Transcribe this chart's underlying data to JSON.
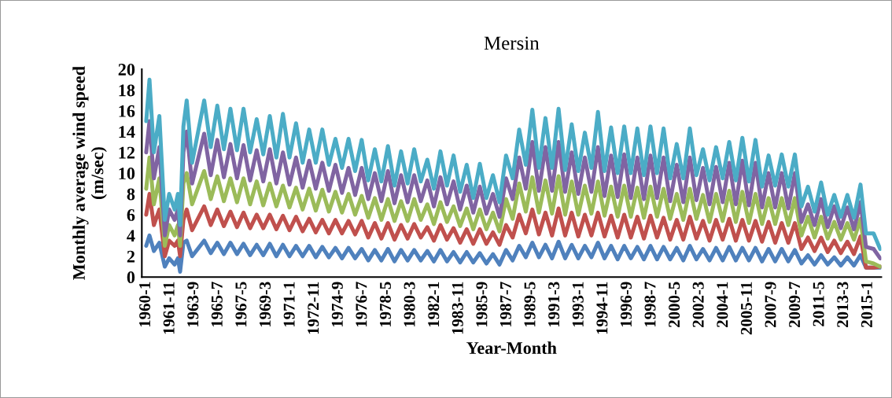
{
  "chart_data": {
    "type": "line",
    "title": "Mersin",
    "xlabel": "Year-Month",
    "ylabel": "Monthly average wind speed\n(m/sec)",
    "x": [
      "1960-01",
      "1960-04",
      "1960-08",
      "1961-01",
      "1961-06",
      "1961-10",
      "1962-03",
      "1962-06",
      "1962-08",
      "1962-11",
      "1963-02",
      "1963-07",
      "1964-06",
      "1964-12",
      "1965-06",
      "1965-12",
      "1966-06",
      "1966-12",
      "1967-06",
      "1967-12",
      "1968-06",
      "1968-12",
      "1969-06",
      "1969-12",
      "1970-06",
      "1970-12",
      "1971-06",
      "1971-12",
      "1972-06",
      "1972-12",
      "1973-06",
      "1973-12",
      "1974-06",
      "1974-12",
      "1975-06",
      "1975-12",
      "1976-06",
      "1976-12",
      "1977-06",
      "1977-12",
      "1978-06",
      "1978-12",
      "1979-06",
      "1979-12",
      "1980-06",
      "1980-12",
      "1981-06",
      "1981-12",
      "1982-06",
      "1982-12",
      "1983-06",
      "1983-12",
      "1984-06",
      "1984-12",
      "1985-06",
      "1985-12",
      "1986-06",
      "1986-12",
      "1987-06",
      "1987-12",
      "1988-06",
      "1988-12",
      "1989-06",
      "1989-12",
      "1990-06",
      "1990-12",
      "1991-06",
      "1991-12",
      "1992-06",
      "1992-12",
      "1993-06",
      "1993-12",
      "1994-06",
      "1994-12",
      "1995-06",
      "1995-12",
      "1996-06",
      "1996-12",
      "1997-06",
      "1997-12",
      "1998-06",
      "1998-12",
      "1999-06",
      "1999-12",
      "2000-06",
      "2000-12",
      "2001-06",
      "2001-12",
      "2002-06",
      "2002-12",
      "2003-06",
      "2003-12",
      "2004-06",
      "2004-12",
      "2005-06",
      "2005-12",
      "2006-06",
      "2006-12",
      "2007-06",
      "2007-12",
      "2008-06",
      "2008-12",
      "2009-06",
      "2009-12",
      "2010-06",
      "2010-12",
      "2011-06",
      "2011-12",
      "2012-06",
      "2012-12",
      "2013-06",
      "2013-12",
      "2014-06",
      "2014-11",
      "2015-06",
      "2015-12"
    ],
    "series": [
      {
        "color": "#4f81bd",
        "values": [
          3,
          4,
          2.5,
          3.3,
          1,
          1.8,
          1.2,
          1.8,
          0.5,
          3.3,
          3.5,
          2,
          3.5,
          2.3,
          3.3,
          2.2,
          3.3,
          2.2,
          3.2,
          2.1,
          3.1,
          2.1,
          3.2,
          2,
          3.1,
          2,
          3,
          2,
          3,
          1.9,
          2.9,
          1.9,
          2.8,
          1.8,
          2.8,
          1.8,
          2.7,
          1.6,
          2.6,
          1.6,
          2.7,
          1.5,
          2.6,
          1.6,
          2.6,
          1.6,
          2.5,
          1.5,
          2.6,
          1.5,
          2.4,
          1.4,
          2.4,
          1.4,
          2.3,
          1.3,
          2.2,
          1.2,
          2.6,
          1.6,
          3,
          1.9,
          3.3,
          1.9,
          3.1,
          1.8,
          3.4,
          1.8,
          3.1,
          1.8,
          3,
          1.9,
          3.3,
          1.8,
          3,
          1.7,
          3,
          1.8,
          2.9,
          1.7,
          3,
          1.7,
          2.9,
          1.7,
          2.8,
          1.6,
          3,
          1.7,
          2.7,
          1.6,
          2.8,
          1.6,
          2.9,
          1.6,
          2.8,
          1.6,
          2.8,
          1.5,
          2.7,
          1.5,
          2.7,
          1.5,
          2.6,
          1.3,
          2.1,
          1.2,
          2.1,
          1.2,
          1.9,
          1.1,
          1.9,
          1.1,
          2.1,
          0.9,
          0.9,
          0.9
        ]
      },
      {
        "color": "#c0504d",
        "values": [
          6,
          8,
          5,
          6.5,
          2,
          3.5,
          3,
          3.5,
          2,
          5.5,
          6.5,
          4.5,
          6.8,
          5,
          6.5,
          4.9,
          6.3,
          4.8,
          6.2,
          4.7,
          6,
          4.7,
          6,
          4.6,
          5.9,
          4.5,
          5.8,
          4.4,
          5.6,
          4.3,
          5.5,
          4.2,
          5.5,
          4.2,
          5.4,
          4.1,
          5.4,
          3.8,
          5.2,
          3.7,
          5.2,
          3.6,
          5,
          3.7,
          5.1,
          3.8,
          4.8,
          3.5,
          5,
          3.6,
          4.7,
          3.3,
          4.6,
          3.2,
          4.6,
          3.2,
          4.3,
          3.1,
          5,
          3.8,
          6,
          4.2,
          6.5,
          4.1,
          6.2,
          4,
          6.6,
          4,
          6.2,
          3.9,
          6,
          4,
          6.2,
          3.9,
          5.9,
          3.8,
          6,
          3.8,
          5.8,
          3.7,
          5.9,
          3.8,
          5.7,
          3.6,
          5.5,
          3.6,
          5.8,
          3.7,
          5.4,
          3.5,
          5.5,
          3.6,
          5.6,
          3.5,
          5.5,
          3.5,
          5.4,
          3.4,
          5.3,
          3.3,
          5.2,
          3.3,
          5.2,
          2.7,
          3.8,
          2.5,
          3.8,
          2.4,
          3.5,
          2.3,
          3.4,
          2.2,
          3.9,
          0.9,
          0.9,
          1.0
        ]
      },
      {
        "color": "#9bbb59",
        "values": [
          8.5,
          11.5,
          7,
          9.5,
          3,
          5,
          4,
          5,
          3,
          9,
          10,
          7,
          10.2,
          7.5,
          9.7,
          7.3,
          9.5,
          7.2,
          9.5,
          7,
          9.2,
          6.9,
          9,
          6.8,
          8.8,
          6.7,
          8.6,
          6.5,
          8.5,
          6.4,
          8.4,
          6.3,
          8.2,
          6.2,
          8,
          6,
          7.8,
          5.7,
          7.6,
          5.5,
          7.5,
          5.4,
          7.3,
          5.4,
          7.5,
          5.5,
          7,
          5.1,
          7.2,
          5.3,
          6.8,
          4.9,
          6.6,
          4.6,
          6.5,
          4.6,
          6.2,
          4.4,
          7.5,
          5.6,
          9,
          6.3,
          9.6,
          6.2,
          9.3,
          6.1,
          9.7,
          6,
          9.2,
          6,
          8.8,
          6.1,
          9.2,
          5.9,
          8.7,
          5.8,
          8.8,
          5.8,
          8.6,
          5.7,
          8.7,
          5.8,
          8.5,
          5.6,
          8,
          5.5,
          8.5,
          5.6,
          7.9,
          5.3,
          8,
          5.4,
          8.3,
          5.3,
          8.2,
          5.2,
          8,
          5.1,
          7.6,
          5.1,
          7.6,
          5,
          7.6,
          4,
          5.8,
          3.8,
          5.8,
          3.7,
          5.3,
          3.6,
          5.2,
          3.6,
          5.6,
          1.5,
          1.3,
          1.0
        ]
      },
      {
        "color": "#8064a2",
        "values": [
          12,
          15,
          9.5,
          12.5,
          4,
          6.5,
          5.5,
          6.5,
          4,
          12,
          14,
          9,
          13.8,
          9.8,
          13.2,
          9.6,
          12.8,
          9.5,
          12.7,
          9.3,
          12.2,
          9.2,
          12.3,
          9,
          12,
          8.9,
          11.5,
          8.6,
          11.2,
          8.5,
          11,
          8.3,
          10.8,
          8.1,
          10.5,
          7.9,
          10.5,
          7.5,
          10,
          7.3,
          10.2,
          7.1,
          9.8,
          7.2,
          9.8,
          7.3,
          9.3,
          6.8,
          9.6,
          7,
          9.2,
          6.5,
          8.8,
          6.2,
          8.7,
          6.1,
          8,
          5.8,
          9.5,
          7.5,
          11.5,
          8.5,
          13,
          8.3,
          12.5,
          8.3,
          13,
          8.2,
          12,
          8,
          11.5,
          8.2,
          12.5,
          7.8,
          11.7,
          7.7,
          11.8,
          7.6,
          11.5,
          7.5,
          11.7,
          7.6,
          11.5,
          7.3,
          10.8,
          7.2,
          11.5,
          7.4,
          10.5,
          7,
          10.6,
          7.2,
          11,
          7,
          11.2,
          6.9,
          11,
          6.7,
          10,
          6.7,
          10,
          6.6,
          10,
          5.3,
          7,
          5,
          7.5,
          4.8,
          6.8,
          4.7,
          6.7,
          4.6,
          7.2,
          2.9,
          2.7,
          1.8
        ]
      },
      {
        "color": "#4bacc6",
        "values": [
          15,
          19,
          12,
          15.5,
          5.5,
          8,
          6.5,
          8,
          5,
          14.5,
          17,
          11,
          17,
          12.5,
          16.5,
          12.3,
          16.2,
          12.2,
          16.2,
          12,
          15.2,
          11.8,
          15.5,
          11.5,
          15.7,
          11.5,
          14.8,
          11,
          14.2,
          11,
          14.2,
          10.8,
          13.3,
          10.5,
          13.3,
          10.2,
          13.2,
          9.3,
          12.3,
          9.2,
          12.6,
          8.8,
          12.1,
          9,
          12.3,
          9.2,
          11.3,
          8.5,
          12.1,
          8.8,
          11.7,
          8.2,
          10.8,
          7.6,
          10.9,
          7.6,
          9.8,
          7.2,
          11.7,
          9.5,
          14.2,
          10.8,
          16.1,
          10.5,
          15.3,
          10.5,
          16.2,
          10.3,
          14.7,
          10.2,
          13.9,
          10.5,
          15.9,
          10.2,
          14.4,
          10,
          14.5,
          10,
          14.3,
          9.8,
          14.5,
          10,
          14.3,
          9.5,
          12.8,
          9.5,
          14.3,
          9.8,
          12.3,
          9.3,
          12.5,
          9.5,
          13,
          9.3,
          13.4,
          9.2,
          13.2,
          8.7,
          11.7,
          8.8,
          11.8,
          8.7,
          11.8,
          6.8,
          8.7,
          6.3,
          9.1,
          6,
          7.9,
          5.8,
          7.9,
          5.7,
          8.9,
          4.2,
          4.2,
          2.7
        ]
      }
    ],
    "xlim": [
      "1959-09",
      "2016-01"
    ],
    "xticks": [
      {
        "value": "1960-01",
        "label": "1960-1"
      },
      {
        "value": "1961-11",
        "label": "1961-11"
      },
      {
        "value": "1963-09",
        "label": "1963-9"
      },
      {
        "value": "1965-07",
        "label": "1965-7"
      },
      {
        "value": "1967-05",
        "label": "1967-5"
      },
      {
        "value": "1969-03",
        "label": "1969-3"
      },
      {
        "value": "1971-01",
        "label": "1971-1"
      },
      {
        "value": "1972-11",
        "label": "1972-11"
      },
      {
        "value": "1974-09",
        "label": "1974-9"
      },
      {
        "value": "1976-07",
        "label": "1976-7"
      },
      {
        "value": "1978-05",
        "label": "1978-5"
      },
      {
        "value": "1980-03",
        "label": "1980-3"
      },
      {
        "value": "1982-01",
        "label": "1982-1"
      },
      {
        "value": "1983-11",
        "label": "1983-11"
      },
      {
        "value": "1985-09",
        "label": "1985-9"
      },
      {
        "value": "1987-07",
        "label": "1987-7"
      },
      {
        "value": "1989-05",
        "label": "1989-5"
      },
      {
        "value": "1991-03",
        "label": "1991-3"
      },
      {
        "value": "1993-01",
        "label": "1993-1"
      },
      {
        "value": "1994-11",
        "label": "1994-11"
      },
      {
        "value": "1996-09",
        "label": "1996-9"
      },
      {
        "value": "1998-07",
        "label": "1998-7"
      },
      {
        "value": "2000-05",
        "label": "2000-5"
      },
      {
        "value": "2002-03",
        "label": "2002-3"
      },
      {
        "value": "2004-01",
        "label": "2004-1"
      },
      {
        "value": "2005-11",
        "label": "2005-11"
      },
      {
        "value": "2007-09",
        "label": "2007-9"
      },
      {
        "value": "2009-07",
        "label": "2009-7"
      },
      {
        "value": "2011-05",
        "label": "2011-5"
      },
      {
        "value": "2013-03",
        "label": "2013-3"
      },
      {
        "value": "2015-01",
        "label": "2015-1"
      }
    ],
    "ylim": [
      0,
      20
    ],
    "yticks": [
      0,
      2,
      4,
      6,
      8,
      10,
      12,
      14,
      16,
      18,
      20
    ],
    "grid": false,
    "marker": "none",
    "line_style": "solid"
  }
}
